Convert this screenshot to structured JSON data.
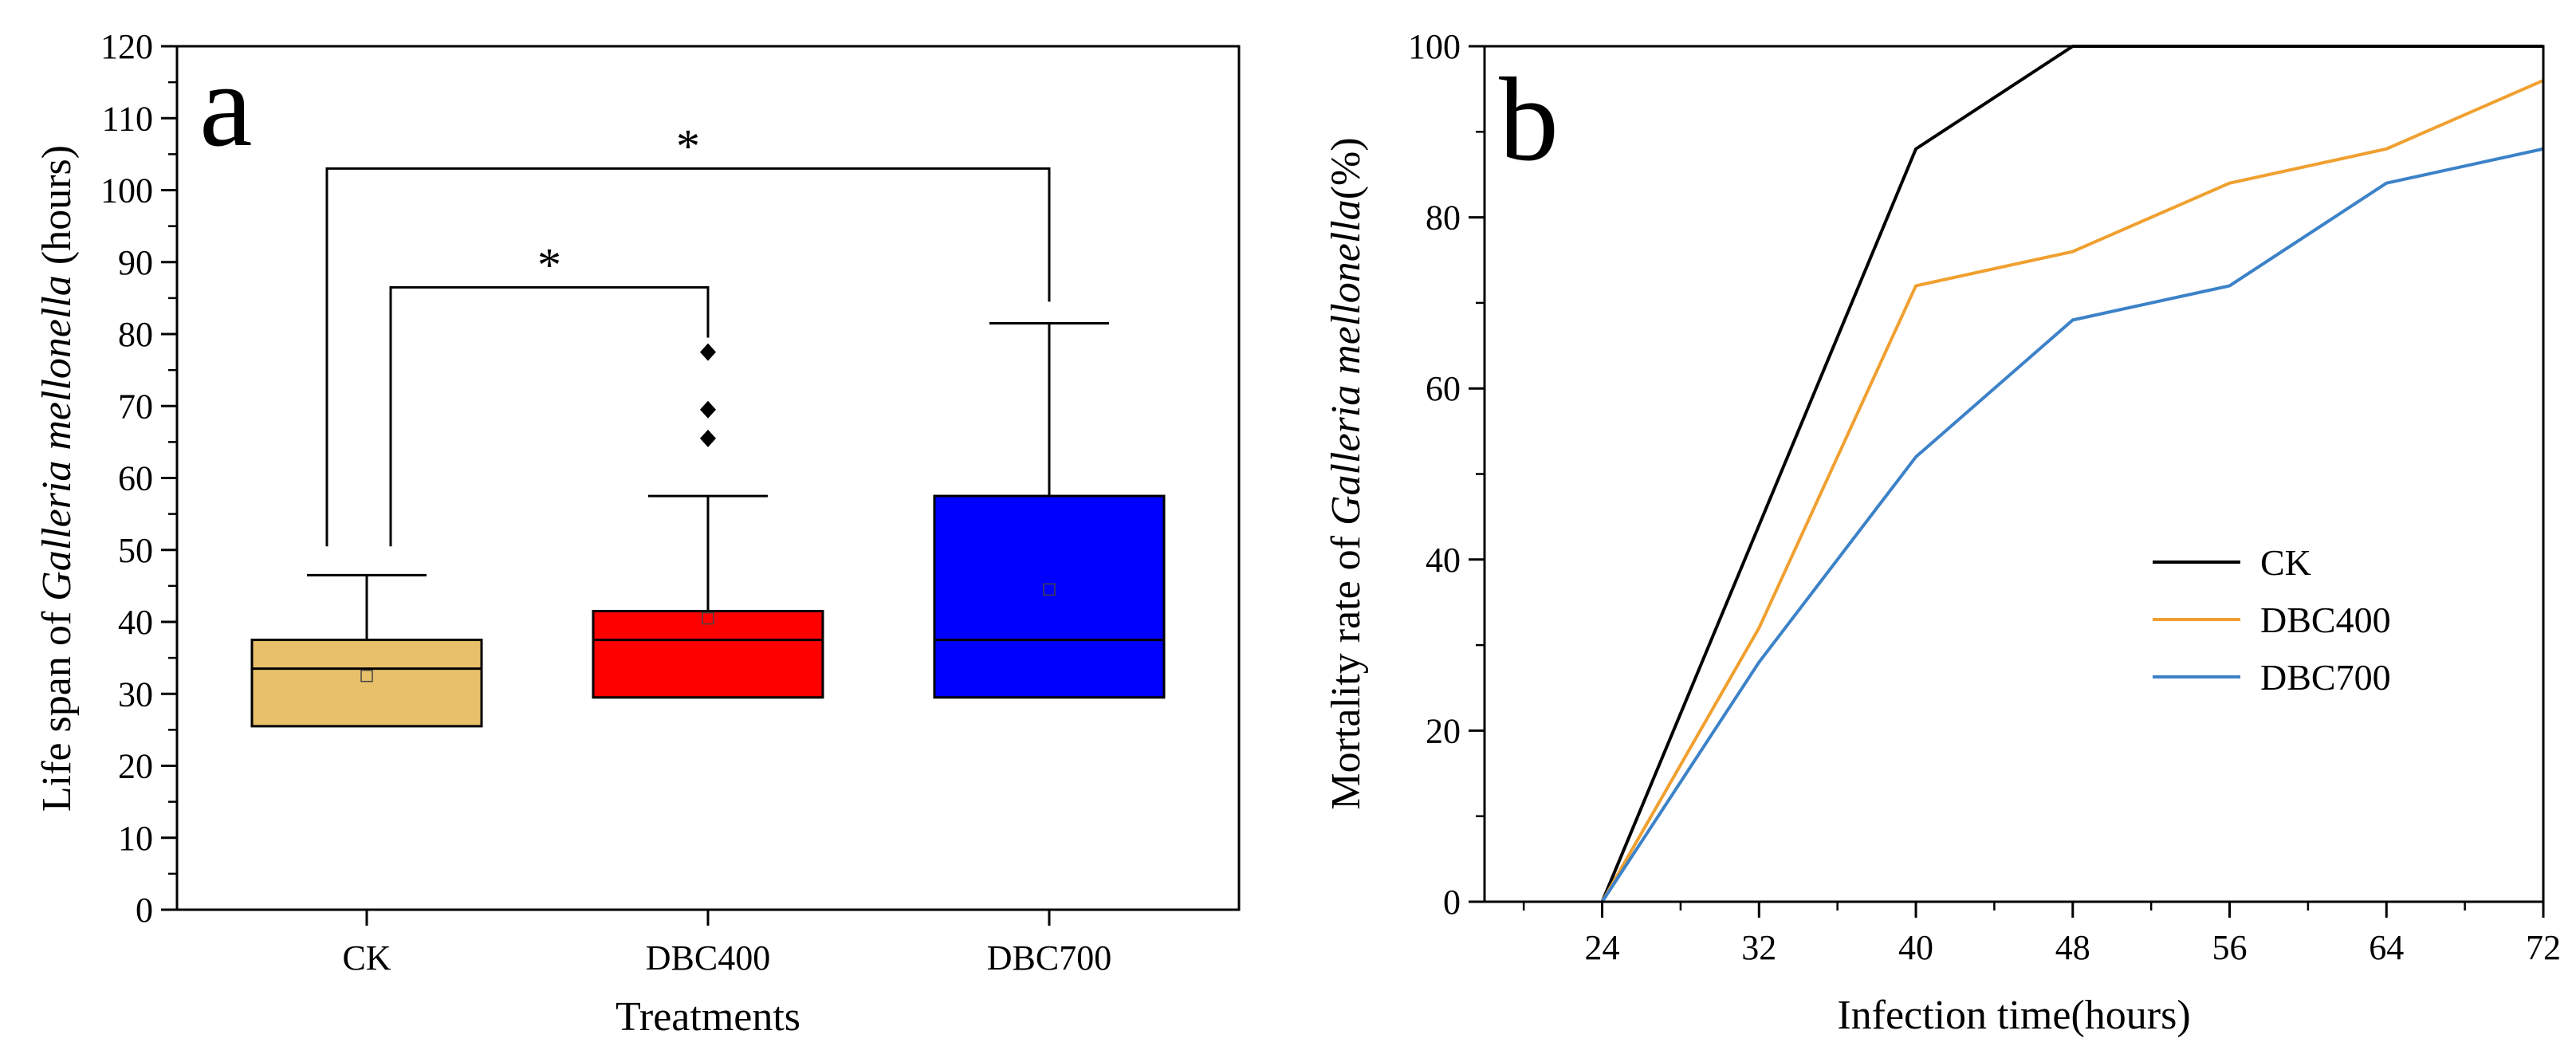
{
  "chart_data": [
    {
      "type": "box",
      "panel_label": "a",
      "xlabel": "Treatments",
      "ylabel_parts": [
        "Life span of ",
        "Galleria mellonella",
        " (hours)"
      ],
      "ylim": [
        0,
        120
      ],
      "yticks": [
        0,
        10,
        20,
        30,
        40,
        50,
        60,
        70,
        80,
        90,
        100,
        110,
        120
      ],
      "categories": [
        "CK",
        "DBC400",
        "DBC700"
      ],
      "boxes": [
        {
          "category": "CK",
          "q1": 25.5,
          "median": 33.5,
          "q3": 37.5,
          "mean": 32.5,
          "whisker_low": 25.5,
          "whisker_high": 46.5,
          "outliers": [],
          "color": "#E8C06A"
        },
        {
          "category": "DBC400",
          "q1": 29.5,
          "median": 37.5,
          "q3": 41.5,
          "mean": 40.5,
          "whisker_low": 29.5,
          "whisker_high": 57.5,
          "outliers": [
            65.5,
            69.5,
            77.5
          ],
          "color": "#FF0000"
        },
        {
          "category": "DBC700",
          "q1": 29.5,
          "median": 37.5,
          "q3": 57.5,
          "mean": 44.5,
          "whisker_low": 29.5,
          "whisker_high": 81.5,
          "outliers": [],
          "color": "#0000FF"
        }
      ],
      "significance": [
        {
          "from": "CK",
          "to": "DBC400",
          "label": "*",
          "level": 86.5
        },
        {
          "from": "CK",
          "to": "DBC700",
          "label": "*",
          "level": 103
        }
      ]
    },
    {
      "type": "line",
      "panel_label": "b",
      "xlabel": "Infection time(hours)",
      "ylabel_parts": [
        "Mortality rate of ",
        "Galleria mellonella",
        "(%)"
      ],
      "x": [
        24,
        32,
        40,
        48,
        56,
        64,
        72
      ],
      "xlim": [
        18,
        72
      ],
      "ylim": [
        0,
        100
      ],
      "yticks": [
        0,
        20,
        40,
        60,
        80,
        100
      ],
      "legend_position": "right",
      "series": [
        {
          "name": "CK",
          "color": "#000000",
          "values": [
            0,
            44,
            88,
            100,
            100,
            100,
            100
          ]
        },
        {
          "name": "DBC400",
          "color": "#F0A030",
          "values": [
            0,
            32,
            72,
            76,
            84,
            88,
            96
          ]
        },
        {
          "name": "DBC700",
          "color": "#3C82C8",
          "values": [
            0,
            28,
            52,
            68,
            72,
            84,
            88
          ]
        }
      ]
    }
  ]
}
